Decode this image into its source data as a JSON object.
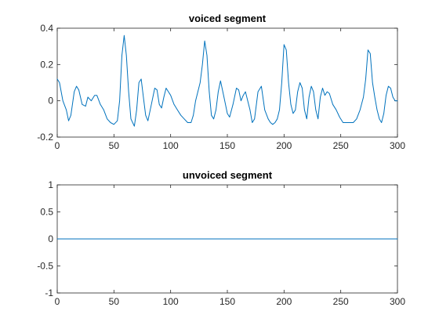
{
  "chart_data": [
    {
      "type": "line",
      "title": "voiced segment",
      "xlabel": "",
      "ylabel": "",
      "xlim": [
        0,
        300
      ],
      "ylim": [
        -0.2,
        0.4
      ],
      "xticks": [
        0,
        50,
        100,
        150,
        200,
        250,
        300
      ],
      "xtick_labels": [
        "0",
        "50",
        "100",
        "150",
        "200",
        "250",
        "300"
      ],
      "yticks": [
        -0.2,
        0,
        0.2,
        0.4
      ],
      "ytick_labels": [
        "-0.2",
        "0",
        "0.2",
        "0.4"
      ],
      "grid": false,
      "line_color": "#0072bd",
      "series": [
        {
          "x": [
            0,
            2,
            5,
            8,
            10,
            12,
            15,
            17,
            19,
            22,
            25,
            27,
            30,
            33,
            35,
            38,
            41,
            44,
            47,
            50,
            53,
            55,
            57,
            59,
            61,
            63,
            65,
            68,
            70,
            72,
            74,
            76,
            78,
            80,
            83,
            86,
            88,
            90,
            92,
            94,
            96,
            98,
            100,
            103,
            106,
            109,
            112,
            115,
            118,
            120,
            122,
            124,
            126,
            128,
            130,
            132,
            134,
            136,
            138,
            140,
            142,
            144,
            147,
            150,
            152,
            155,
            158,
            160,
            162,
            164,
            166,
            168,
            170,
            172,
            174,
            177,
            180,
            183,
            186,
            188,
            190,
            192,
            194,
            196,
            198,
            200,
            202,
            204,
            206,
            208,
            210,
            212,
            214,
            216,
            218,
            220,
            222,
            224,
            226,
            228,
            230,
            232,
            234,
            236,
            238,
            240,
            243,
            246,
            249,
            252,
            255,
            258,
            261,
            264,
            267,
            270,
            272,
            274,
            276,
            278,
            280,
            282,
            284,
            286,
            288,
            290,
            292,
            294,
            296,
            298,
            300
          ],
          "y": [
            0.12,
            0.1,
            0.0,
            -0.05,
            -0.11,
            -0.08,
            0.05,
            0.08,
            0.06,
            -0.02,
            -0.03,
            0.02,
            0.0,
            0.03,
            0.03,
            -0.02,
            -0.05,
            -0.1,
            -0.12,
            -0.13,
            -0.11,
            0.0,
            0.25,
            0.36,
            0.25,
            0.05,
            -0.1,
            -0.14,
            -0.05,
            0.1,
            0.12,
            0.02,
            -0.08,
            -0.11,
            -0.02,
            0.07,
            0.06,
            -0.02,
            -0.04,
            0.02,
            0.07,
            0.05,
            0.03,
            -0.02,
            -0.05,
            -0.08,
            -0.1,
            -0.12,
            -0.12,
            -0.08,
            0.0,
            0.05,
            0.1,
            0.2,
            0.33,
            0.25,
            0.05,
            -0.08,
            -0.1,
            -0.05,
            0.05,
            0.11,
            0.02,
            -0.07,
            -0.09,
            -0.02,
            0.07,
            0.06,
            0.0,
            0.03,
            0.05,
            0.0,
            -0.05,
            -0.12,
            -0.1,
            0.05,
            0.08,
            -0.05,
            -0.1,
            -0.12,
            -0.13,
            -0.12,
            -0.1,
            -0.05,
            0.1,
            0.31,
            0.28,
            0.1,
            -0.02,
            -0.07,
            -0.05,
            0.05,
            0.1,
            0.07,
            -0.05,
            -0.1,
            0.02,
            0.08,
            0.05,
            -0.05,
            -0.1,
            0.02,
            0.07,
            0.03,
            0.05,
            0.04,
            -0.02,
            -0.05,
            -0.09,
            -0.12,
            -0.12,
            -0.12,
            -0.12,
            -0.1,
            -0.05,
            0.02,
            0.12,
            0.28,
            0.26,
            0.1,
            0.02,
            -0.05,
            -0.1,
            -0.12,
            -0.07,
            0.03,
            0.08,
            0.07,
            0.02,
            0.0,
            0.0
          ]
        }
      ]
    },
    {
      "type": "line",
      "title": "unvoiced segment",
      "xlabel": "",
      "ylabel": "",
      "xlim": [
        0,
        300
      ],
      "ylim": [
        -1,
        1
      ],
      "xticks": [
        0,
        50,
        100,
        150,
        200,
        250,
        300
      ],
      "xtick_labels": [
        "0",
        "50",
        "100",
        "150",
        "200",
        "250",
        "300"
      ],
      "yticks": [
        -1,
        -0.5,
        0,
        0.5,
        1
      ],
      "ytick_labels": [
        "-1",
        "-0.5",
        "0",
        "0.5",
        "1"
      ],
      "grid": false,
      "line_color": "#0072bd",
      "series": [
        {
          "x": [
            0,
            300
          ],
          "y": [
            0,
            0
          ]
        }
      ]
    }
  ]
}
